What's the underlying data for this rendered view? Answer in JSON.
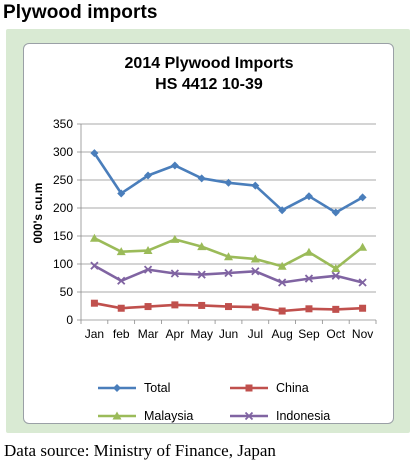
{
  "page_heading": "Plywood imports",
  "source_note": "Data source: Ministry of Finance, Japan",
  "chart_data": {
    "type": "line",
    "title": "2014 Plywood Imports",
    "subtitle": "HS 4412 10-39",
    "xlabel": "",
    "ylabel": "000's cu.m",
    "categories": [
      "Jan",
      "feb",
      "Mar",
      "Apr",
      "May",
      "Jun",
      "Jul",
      "Aug",
      "Sep",
      "Oct",
      "Nov"
    ],
    "ylim": [
      0,
      350
    ],
    "yticks": [
      0,
      50,
      100,
      150,
      200,
      250,
      300,
      350
    ],
    "grid": true,
    "legend_position": "bottom",
    "series": [
      {
        "name": "Total",
        "color": "#4a7ebb",
        "marker": "diamond",
        "values": [
          298,
          226,
          258,
          276,
          253,
          245,
          240,
          196,
          221,
          192,
          219
        ]
      },
      {
        "name": "China",
        "color": "#c0504d",
        "marker": "square",
        "values": [
          30,
          21,
          24,
          27,
          26,
          24,
          23,
          16,
          20,
          19,
          21
        ]
      },
      {
        "name": "Malaysia",
        "color": "#9bbb59",
        "marker": "triangle",
        "values": [
          146,
          122,
          124,
          144,
          131,
          113,
          109,
          96,
          121,
          92,
          130
        ]
      },
      {
        "name": "Indonesia",
        "color": "#8064a2",
        "marker": "x",
        "values": [
          97,
          70,
          90,
          83,
          81,
          84,
          87,
          67,
          74,
          79,
          67
        ]
      }
    ]
  }
}
